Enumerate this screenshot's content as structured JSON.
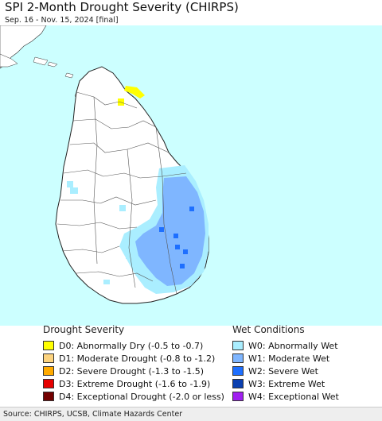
{
  "header": {
    "title": "SPI 2-Month Drought Severity (CHIRPS)",
    "subtitle": "Sep. 16 - Nov. 15, 2024 [final]"
  },
  "colors": {
    "sea": "#ccffff",
    "land": "#ffffff",
    "border": "#333333"
  },
  "legend": {
    "drought": {
      "title": "Drought Severity",
      "items": [
        {
          "code": "D0",
          "label": "D0: Abnormally Dry (-0.5 to -0.7)",
          "color": "#ffff00"
        },
        {
          "code": "D1",
          "label": "D1: Moderate Drought (-0.8 to -1.2)",
          "color": "#fcd37f"
        },
        {
          "code": "D2",
          "label": "D2: Severe Drought (-1.3 to -1.5)",
          "color": "#ffaa00"
        },
        {
          "code": "D3",
          "label": "D3: Extreme Drought (-1.6 to -1.9)",
          "color": "#e60000"
        },
        {
          "code": "D4",
          "label": "D4: Exceptional Drought (-2.0 or less)",
          "color": "#730000"
        }
      ]
    },
    "wet": {
      "title": "Wet Conditions",
      "items": [
        {
          "code": "W0",
          "label": "W0: Abnormally Wet",
          "color": "#aaeeff"
        },
        {
          "code": "W1",
          "label": "W1: Moderate Wet",
          "color": "#7fb6ff"
        },
        {
          "code": "W2",
          "label": "W2: Severe Wet",
          "color": "#1e6fff"
        },
        {
          "code": "W3",
          "label": "W3: Extreme Wet",
          "color": "#0a3fb0"
        },
        {
          "code": "W4",
          "label": "W4: Exceptional Wet",
          "color": "#a020f0"
        }
      ]
    }
  },
  "footer": {
    "source": "Source: CHIRPS, UCSB, Climate Hazards Center"
  }
}
